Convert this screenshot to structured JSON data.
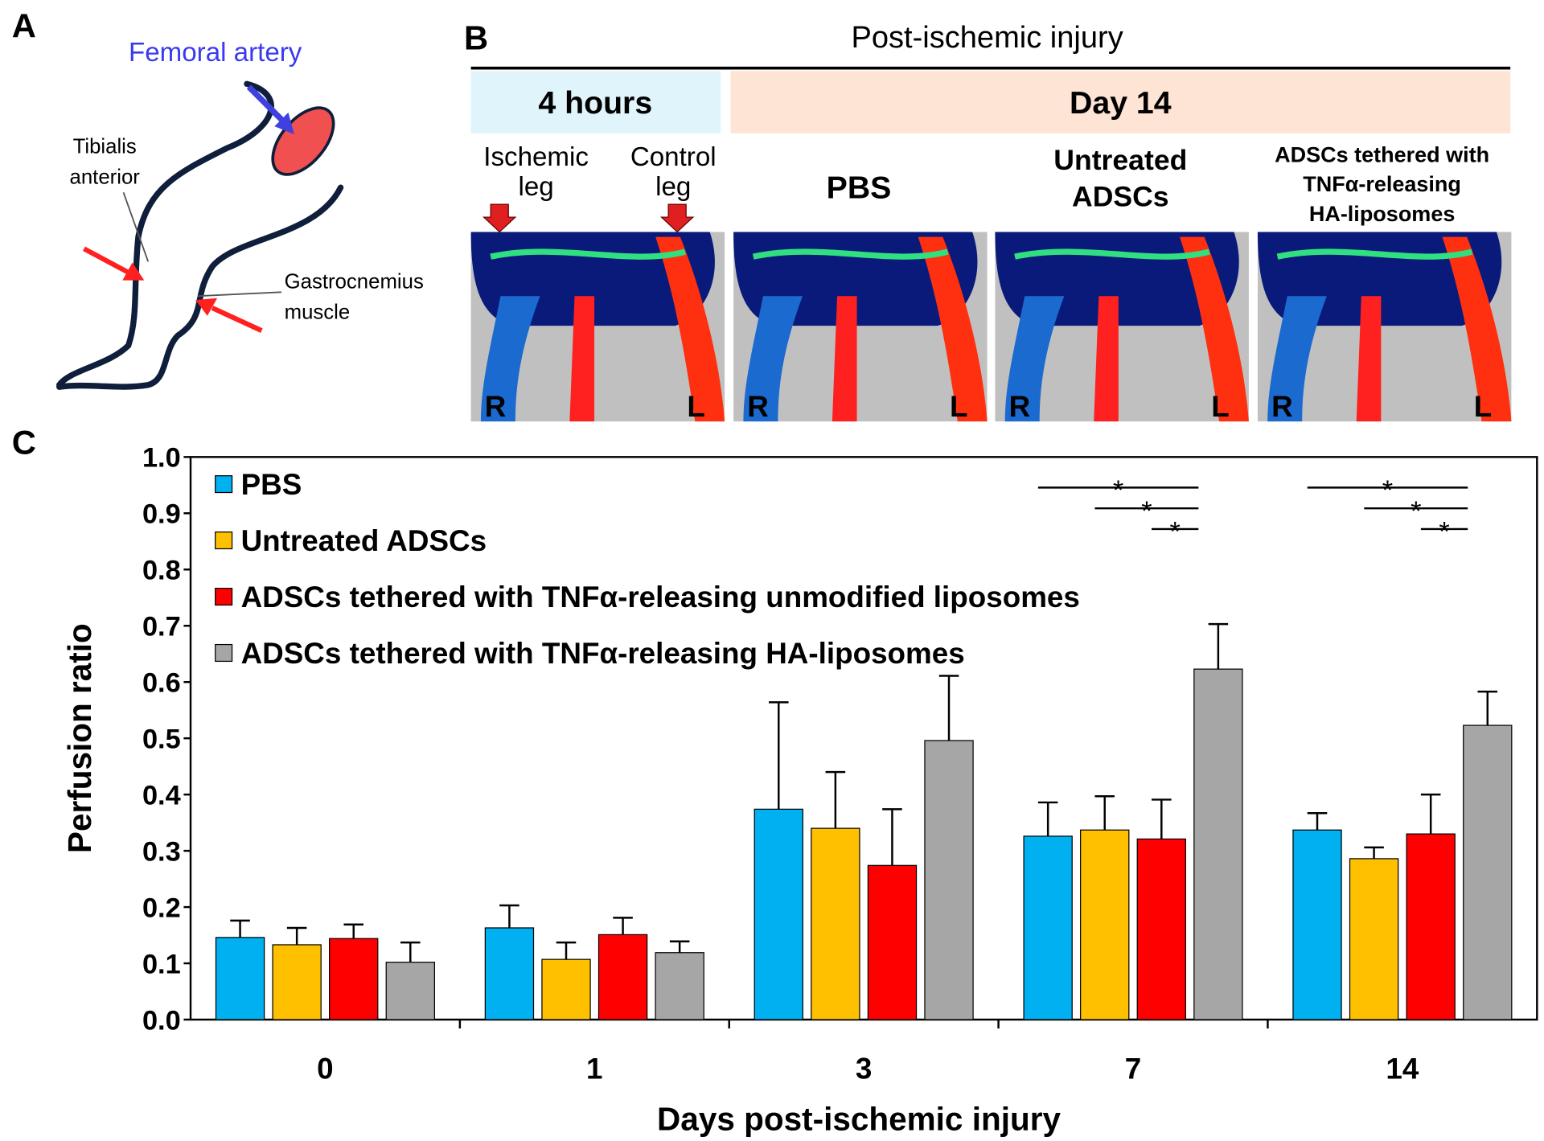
{
  "panel_labels": [
    "A",
    "B",
    "C"
  ],
  "panel_a": {
    "artery_label": "Femoral artery",
    "muscle_labels": [
      [
        "Tibialis",
        "anterior"
      ],
      [
        "Gastrocnemius",
        "muscle"
      ]
    ]
  },
  "panel_b": {
    "title": "Post-ischemic injury",
    "timepoints": [
      "4 hours",
      "Day 14"
    ],
    "leg_labels": [
      [
        "Ischemic",
        "leg"
      ],
      [
        "Control",
        "leg"
      ]
    ],
    "group_labels": [
      [
        "PBS"
      ],
      [
        "Untreated",
        "ADSCs"
      ],
      [
        "ADSCs tethered with",
        "TNFα-releasing",
        "HA-liposomes"
      ]
    ],
    "side_labels": [
      "R",
      "L"
    ]
  },
  "chart_data": {
    "type": "bar",
    "x_label": "Days post-ischemic injury",
    "y_label": "Perfusion ratio",
    "categories": [
      "0",
      "1",
      "3",
      "7",
      "14"
    ],
    "ylim": [
      0,
      1
    ],
    "yticks": [
      {
        "value": 0,
        "label": "0.0"
      },
      0.1,
      0.2,
      0.3,
      0.4,
      0.5,
      0.6,
      0.7,
      0.8,
      0.9,
      {
        "value": 1,
        "label": "1.0"
      }
    ],
    "legend": "upper left",
    "series": [
      {
        "name": "PBS",
        "color": "#00b0f0",
        "values": [
          0.146,
          0.163,
          0.374,
          0.326,
          0.337
        ],
        "errors": [
          0.03,
          0.04,
          0.19,
          0.06,
          0.03
        ]
      },
      {
        "name": "Untreated ADSCs",
        "color": "#ffc000",
        "values": [
          0.133,
          0.107,
          0.34,
          0.337,
          0.286
        ],
        "errors": [
          0.03,
          0.03,
          0.1,
          0.06,
          0.02
        ]
      },
      {
        "name": "ADSCs tethered with TNFα-releasing unmodified liposomes",
        "color": "#ff0000",
        "values": [
          0.144,
          0.151,
          0.274,
          0.321,
          0.33
        ],
        "errors": [
          0.025,
          0.03,
          0.1,
          0.07,
          0.07
        ]
      },
      {
        "name": "ADSCs tethered with TNFα-releasing HA-liposomes",
        "color": "#a6a6a6",
        "values": [
          0.102,
          0.119,
          0.496,
          0.623,
          0.523
        ],
        "errors": [
          0.035,
          0.02,
          0.115,
          0.08,
          0.06
        ]
      }
    ],
    "significance": [
      {
        "category": "7",
        "against": "ADSCs tethered with TNFα-releasing HA-liposomes",
        "compare": [
          "PBS",
          "Untreated ADSCs",
          "ADSCs tethered with TNFα-releasing unmodified liposomes"
        ],
        "label": "*"
      },
      {
        "category": "14",
        "against": "ADSCs tethered with TNFα-releasing HA-liposomes",
        "compare": [
          "PBS",
          "Untreated ADSCs",
          "ADSCs tethered with TNFα-releasing unmodified liposomes"
        ],
        "label": "*"
      }
    ]
  }
}
